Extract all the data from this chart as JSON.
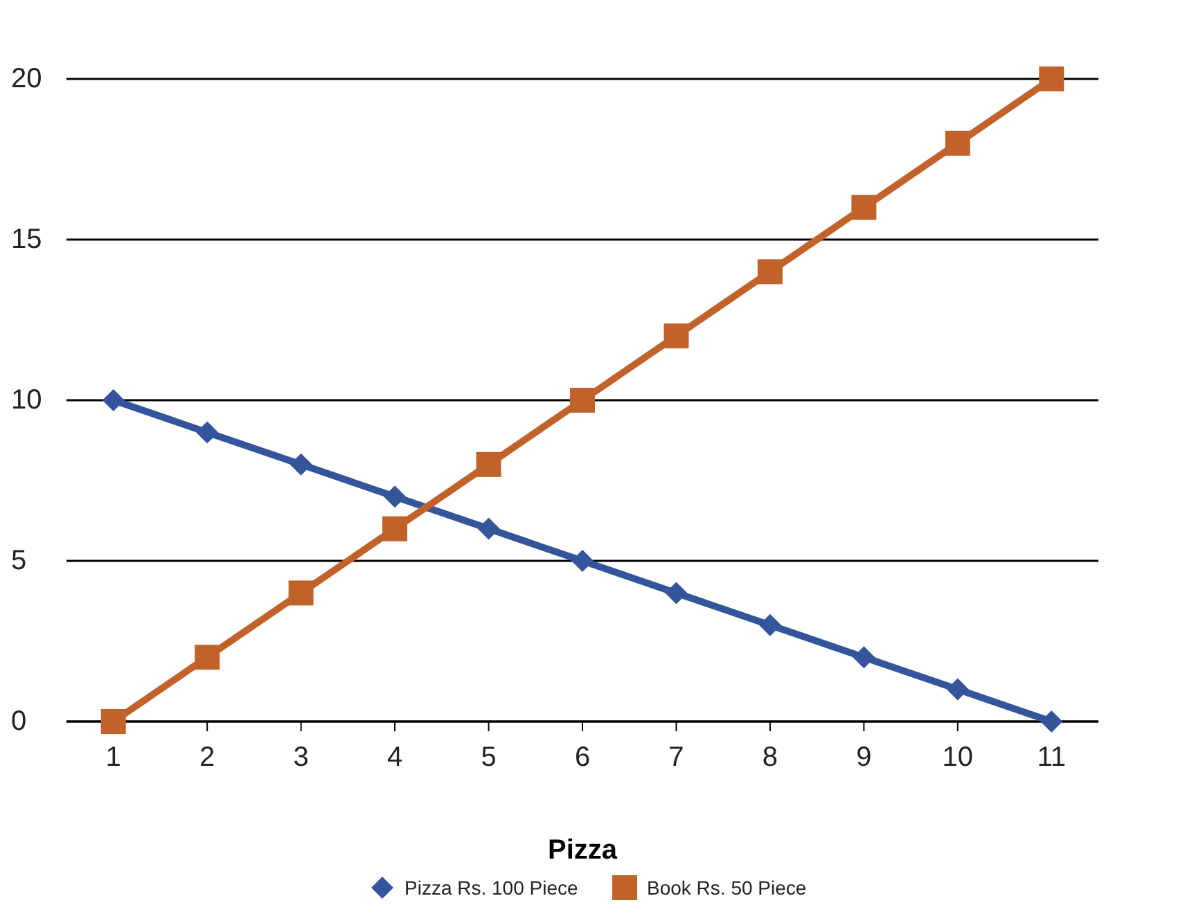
{
  "chart_data": {
    "type": "line",
    "xlabel": "Pizza",
    "categories": [
      "1",
      "2",
      "3",
      "4",
      "5",
      "6",
      "7",
      "8",
      "9",
      "10",
      "11"
    ],
    "series": [
      {
        "name": "Pizza Rs. 100 Piece",
        "color": "#34559b",
        "marker": "diamond",
        "values": [
          10,
          9,
          8,
          7,
          6,
          5,
          4,
          3,
          2,
          1,
          0
        ]
      },
      {
        "name": "Book Rs. 50 Piece",
        "color": "#c0622a",
        "marker": "square",
        "values": [
          0,
          2,
          4,
          6,
          8,
          10,
          12,
          14,
          16,
          18,
          20
        ]
      }
    ],
    "ylim": [
      0,
      20
    ],
    "yticks": [
      0,
      5,
      10,
      15,
      20
    ],
    "grid": "y",
    "legend": "bottom",
    "line_style": "solid"
  }
}
